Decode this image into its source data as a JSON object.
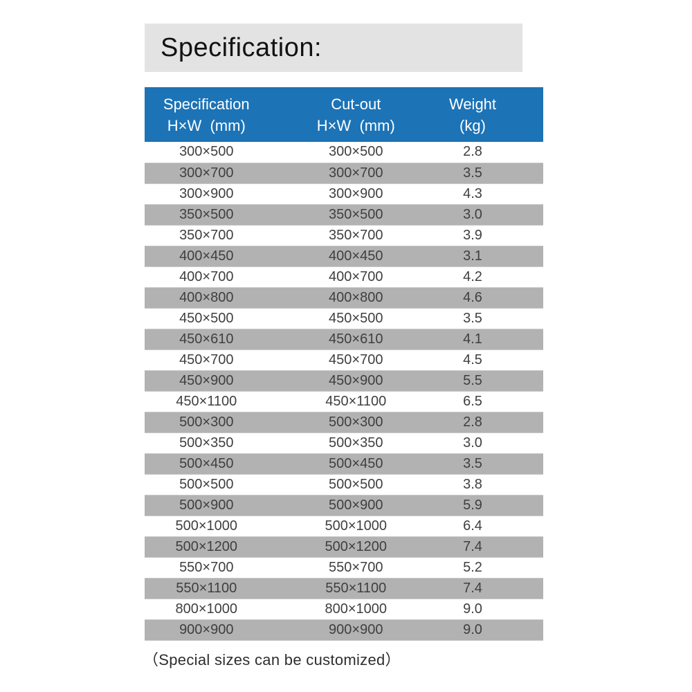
{
  "banner": {
    "title": "Specification:"
  },
  "table": {
    "columns": [
      {
        "line1": "Specification",
        "line2": "H×W  (mm)"
      },
      {
        "line1": "Cut-out",
        "line2": "H×W  (mm)"
      },
      {
        "line1": "Weight",
        "line2": "(kg)"
      }
    ],
    "rows": [
      {
        "spec": "300×500",
        "cutout": "300×500",
        "weight": "2.8"
      },
      {
        "spec": "300×700",
        "cutout": "300×700",
        "weight": "3.5"
      },
      {
        "spec": "300×900",
        "cutout": "300×900",
        "weight": "4.3"
      },
      {
        "spec": "350×500",
        "cutout": "350×500",
        "weight": "3.0"
      },
      {
        "spec": "350×700",
        "cutout": "350×700",
        "weight": "3.9"
      },
      {
        "spec": "400×450",
        "cutout": "400×450",
        "weight": "3.1"
      },
      {
        "spec": "400×700",
        "cutout": "400×700",
        "weight": "4.2"
      },
      {
        "spec": "400×800",
        "cutout": "400×800",
        "weight": "4.6"
      },
      {
        "spec": "450×500",
        "cutout": "450×500",
        "weight": "3.5"
      },
      {
        "spec": "450×610",
        "cutout": "450×610",
        "weight": "4.1"
      },
      {
        "spec": "450×700",
        "cutout": "450×700",
        "weight": "4.5"
      },
      {
        "spec": "450×900",
        "cutout": "450×900",
        "weight": "5.5"
      },
      {
        "spec": "450×1100",
        "cutout": "450×1100",
        "weight": "6.5"
      },
      {
        "spec": "500×300",
        "cutout": "500×300",
        "weight": "2.8"
      },
      {
        "spec": "500×350",
        "cutout": "500×350",
        "weight": "3.0"
      },
      {
        "spec": "500×450",
        "cutout": "500×450",
        "weight": "3.5"
      },
      {
        "spec": "500×500",
        "cutout": "500×500",
        "weight": "3.8"
      },
      {
        "spec": "500×900",
        "cutout": "500×900",
        "weight": "5.9"
      },
      {
        "spec": "500×1000",
        "cutout": "500×1000",
        "weight": "6.4"
      },
      {
        "spec": "500×1200",
        "cutout": "500×1200",
        "weight": "7.4"
      },
      {
        "spec": "550×700",
        "cutout": "550×700",
        "weight": "5.2"
      },
      {
        "spec": "550×1100",
        "cutout": "550×1100",
        "weight": "7.4"
      },
      {
        "spec": "800×1000",
        "cutout": "800×1000",
        "weight": "9.0"
      },
      {
        "spec": "900×900",
        "cutout": "900×900",
        "weight": "9.0"
      }
    ]
  },
  "footer": {
    "note": "（Special sizes can be customized）"
  },
  "colors": {
    "header_blue": "#1c73b6",
    "row_shaded_gray": "#b2b2b2",
    "banner_gray": "#e3e3e3"
  }
}
